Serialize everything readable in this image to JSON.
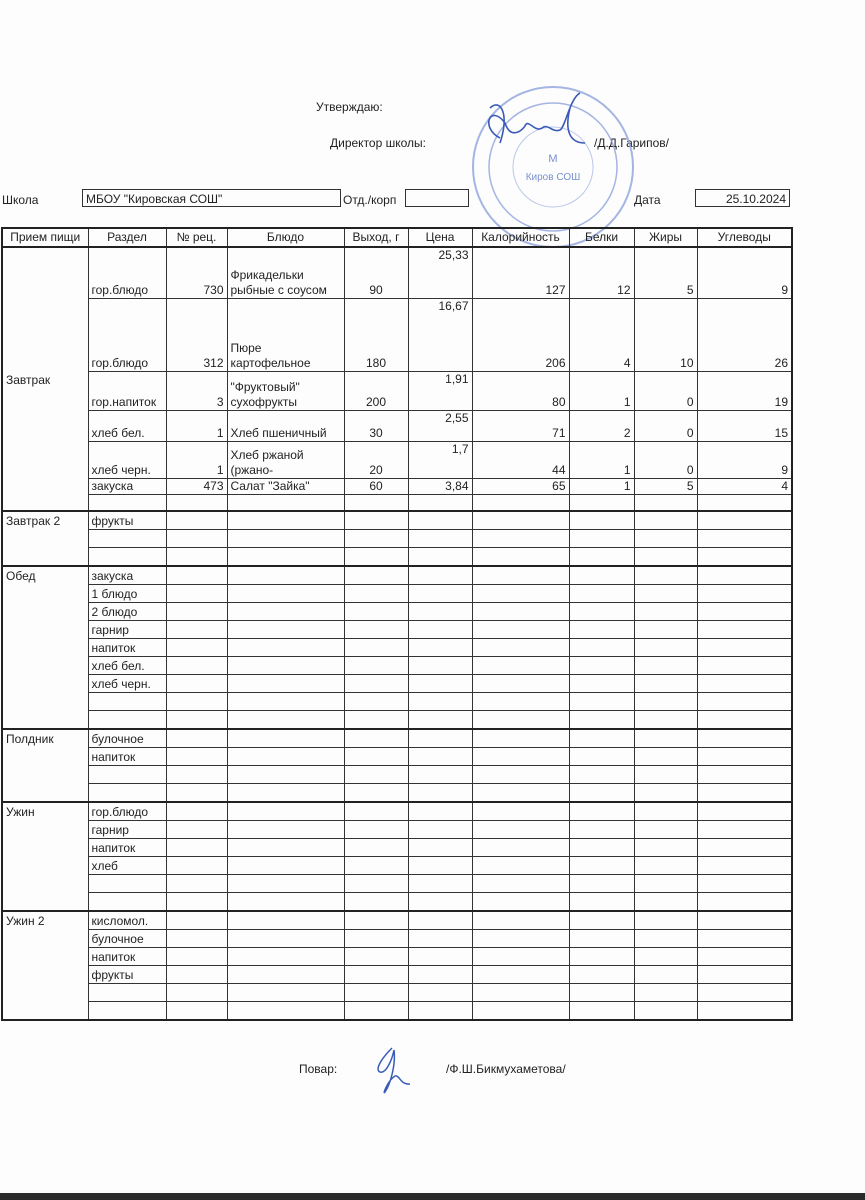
{
  "header": {
    "approve": "Утверждаю:",
    "director_label": "Директор школы:",
    "director_name": "/Д.Д.Гарипов/",
    "stamp_text": "МБОУ Кировская СОШ",
    "school_label": "Школа",
    "school_value": "МБОУ \"Кировская СОШ\"",
    "dept_label": "Отд./корп",
    "dept_value": "",
    "date_label": "Дата",
    "date_value": "25.10.2024"
  },
  "columns": [
    "Прием пищи",
    "Раздел",
    "№ рец.",
    "Блюдо",
    "Выход, г",
    "Цена",
    "Калорийность",
    "Белки",
    "Жиры",
    "Углеводы"
  ],
  "meals": [
    {
      "name": "Завтрак",
      "rows": [
        {
          "section": "гор.блюдо",
          "recipe": "730",
          "dish": "Фрикадельки рыбные с соусом",
          "yield": "90",
          "price": "25,33",
          "kcal": "127",
          "protein": "12",
          "fat": "5",
          "carbs": "9"
        },
        {
          "section": "гор.блюдо",
          "recipe": "312",
          "dish": "Пюре картофельное",
          "yield": "180",
          "price": "16,67",
          "kcal": "206",
          "protein": "4",
          "fat": "10",
          "carbs": "26"
        },
        {
          "section": "гор.напиток",
          "recipe": "3",
          "dish": "\"Фруктовый\" сухофрукты",
          "yield": "200",
          "price": "1,91",
          "kcal": "80",
          "protein": "1",
          "fat": "0",
          "carbs": "19"
        },
        {
          "section": "хлеб бел.",
          "recipe": "1",
          "dish": "Хлеб пшеничный",
          "yield": "30",
          "price": "2,55",
          "kcal": "71",
          "protein": "2",
          "fat": "0",
          "carbs": "15"
        },
        {
          "section": "хлеб черн.",
          "recipe": "1",
          "dish": "Хлеб ржаной (ржано-",
          "yield": "20",
          "price": "1,7",
          "kcal": "44",
          "protein": "1",
          "fat": "0",
          "carbs": "9"
        },
        {
          "section": "закуска",
          "recipe": "473",
          "dish": "Салат \"Зайка\"",
          "yield": "60",
          "price": "3,84",
          "kcal": "65",
          "protein": "1",
          "fat": "5",
          "carbs": "4"
        },
        {
          "section": ""
        }
      ]
    },
    {
      "name": "Завтрак 2",
      "rows": [
        {
          "section": "фрукты"
        },
        {
          "section": ""
        },
        {
          "section": ""
        }
      ]
    },
    {
      "name": "Обед",
      "rows": [
        {
          "section": "закуска"
        },
        {
          "section": "1 блюдо"
        },
        {
          "section": "2 блюдо"
        },
        {
          "section": "гарнир"
        },
        {
          "section": "напиток"
        },
        {
          "section": "хлеб бел."
        },
        {
          "section": "хлеб черн."
        },
        {
          "section": ""
        },
        {
          "section": ""
        }
      ]
    },
    {
      "name": "Полдник",
      "rows": [
        {
          "section": "булочное"
        },
        {
          "section": "напиток"
        },
        {
          "section": ""
        },
        {
          "section": ""
        }
      ]
    },
    {
      "name": "Ужин",
      "rows": [
        {
          "section": "гор.блюдо"
        },
        {
          "section": "гарнир"
        },
        {
          "section": "напиток"
        },
        {
          "section": "хлеб"
        },
        {
          "section": ""
        },
        {
          "section": ""
        }
      ]
    },
    {
      "name": "Ужин 2",
      "rows": [
        {
          "section": "кисломол."
        },
        {
          "section": "булочное"
        },
        {
          "section": "напиток"
        },
        {
          "section": "фрукты"
        },
        {
          "section": ""
        },
        {
          "section": ""
        }
      ]
    }
  ],
  "footer": {
    "cook_label": "Повар:",
    "cook_name": "/Ф.Ш.Бикмухаметова/"
  },
  "colors": {
    "ink": "#222222",
    "stamp": "#5a78c8",
    "signature": "#3a5bb8"
  }
}
